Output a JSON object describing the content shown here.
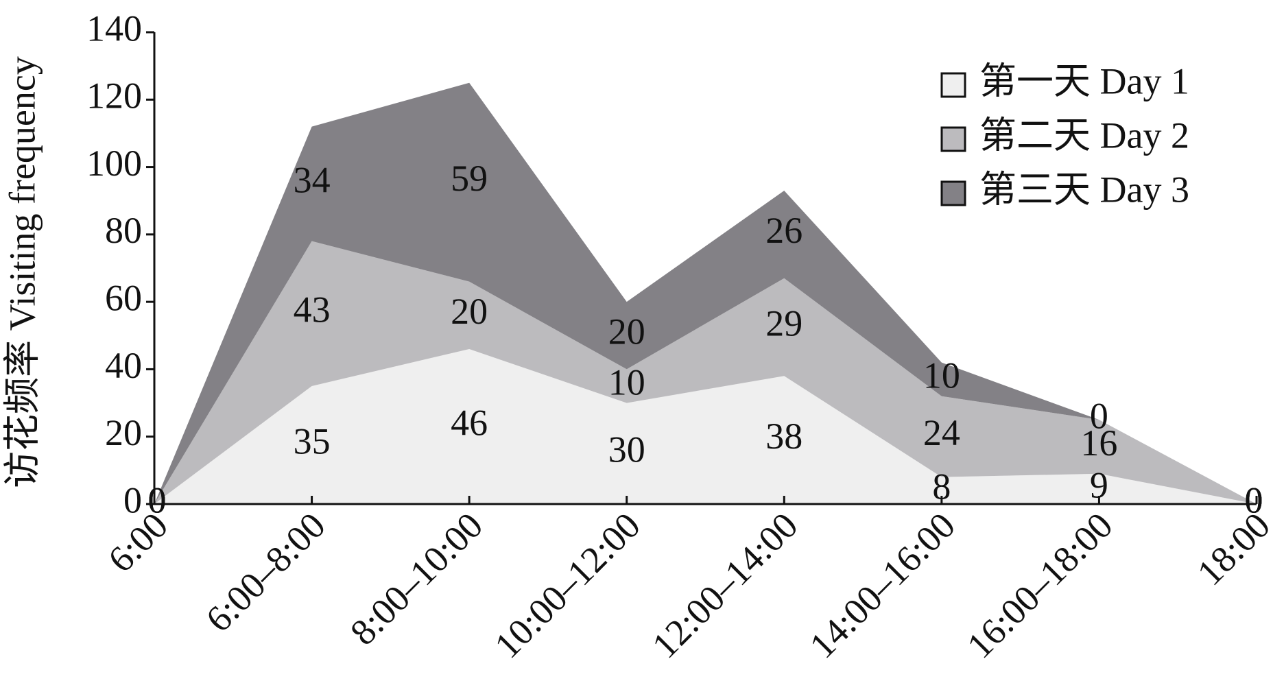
{
  "chart_data": {
    "type": "stacked-area",
    "y_label": "访花频率  Visiting frequency",
    "categories": [
      "6:00",
      "6:00–8:00",
      "8:00–10:00",
      "10:00–12:00",
      "12:00–14:00",
      "14:00–16:00",
      "16:00–18:00",
      "18:00"
    ],
    "series": [
      {
        "name": "第一天 Day 1",
        "color": "#efefef",
        "values": [
          0,
          35,
          46,
          30,
          38,
          8,
          9,
          0
        ]
      },
      {
        "name": "第二天 Day 2",
        "color": "#bcbbbe",
        "values": [
          0,
          43,
          20,
          10,
          29,
          24,
          16,
          0
        ]
      },
      {
        "name": "第三天 Day 3",
        "color": "#838186",
        "values": [
          0,
          34,
          59,
          20,
          26,
          10,
          0,
          0
        ]
      }
    ],
    "ylim": [
      0,
      140
    ],
    "yticks": [
      0,
      20,
      40,
      60,
      80,
      100,
      120,
      140
    ],
    "grid": false,
    "legend": "top-right"
  }
}
